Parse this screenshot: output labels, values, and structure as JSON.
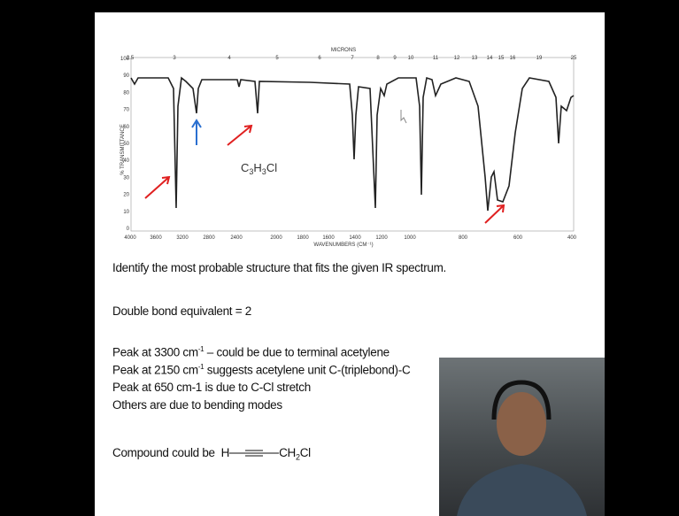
{
  "figure": {
    "top_axis_title": "MICRONS",
    "micron_ticks": [
      "2.5",
      "3",
      "4",
      "5",
      "6",
      "7",
      "8",
      "9",
      "10",
      "11",
      "12",
      "13",
      "14",
      "15",
      "16",
      "19",
      "25"
    ],
    "y_axis_title": "% TRANSMITTANCE",
    "y_ticks": [
      "100",
      "90",
      "80",
      "70",
      "60",
      "50",
      "40",
      "30",
      "20",
      "10",
      "0"
    ],
    "x_ticks": [
      "4000",
      "3600",
      "3200",
      "2800",
      "2400",
      "2000",
      "1800",
      "1600",
      "1400",
      "1200",
      "1000",
      "800",
      "600",
      "400"
    ],
    "x_axis_title": "WAVENUMBERS (CM⁻¹)",
    "formula": {
      "c": "C",
      "c_n": "3",
      "h": "H",
      "h_n": "3",
      "cl": "Cl"
    }
  },
  "question": "Identify the most probable structure that fits the given IR spectrum.",
  "dbe": "Double bond equivalent = 2",
  "notes": [
    {
      "a": "Peak at 3300 cm",
      "sup": "-1",
      "b": " – could be due to terminal acetylene"
    },
    {
      "a": "Peak at 2150 cm",
      "sup": "-1",
      "b": " suggests acetylene unit C-(triplebond)-C"
    },
    {
      "a": "Peak at 650 cm-1 is due to C-Cl stretch"
    },
    {
      "a": "Others are due to bending modes"
    }
  ],
  "compound": {
    "label": "Compound could be",
    "h": "H",
    "ch": "CH",
    "sub": "2",
    "cl": "Cl"
  }
}
